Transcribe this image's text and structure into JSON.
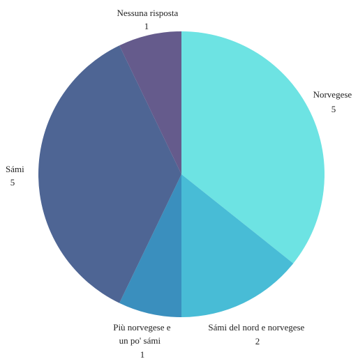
{
  "chart_data": {
    "type": "pie",
    "start_angle_deg": 0,
    "direction": "clockwise",
    "slices": [
      {
        "label": "Norvegese",
        "value": 5,
        "color": "#6de3e3"
      },
      {
        "label": "Sámi del nord e norvegese",
        "value": 2,
        "color": "#48bcd6"
      },
      {
        "label": "Più norvegese e un po' sámi",
        "value": 1,
        "color": "#3a8fbe"
      },
      {
        "label": "Sámi",
        "value": 5,
        "color": "#4e6594"
      },
      {
        "label": "Nessuna risposta",
        "value": 1,
        "color": "#655b8c"
      }
    ]
  }
}
